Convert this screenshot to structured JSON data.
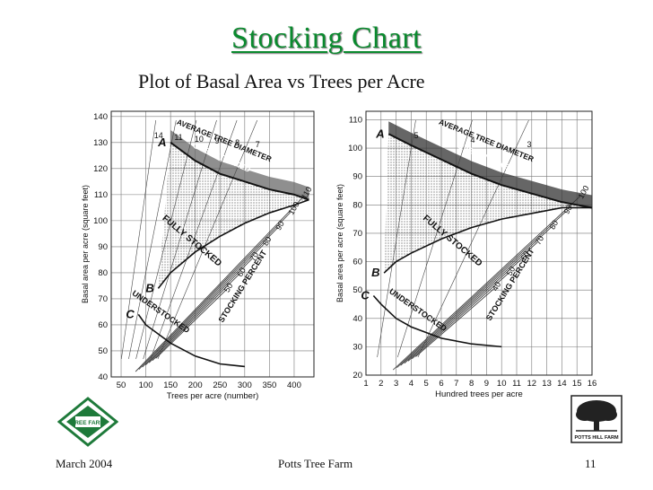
{
  "slide": {
    "title": "Stocking Chart",
    "subtitle": "Plot of Basal Area vs Trees per Acre"
  },
  "footer": {
    "date": "March 2004",
    "name": "Potts Tree Farm",
    "page": "11"
  },
  "logos": {
    "left_icon": "tree-farm-diamond-logo",
    "left_text": "TREE FARM",
    "right_icon": "oak-tree-logo",
    "right_text": "POTTS HILL FARM"
  },
  "chart_data": [
    {
      "type": "line",
      "xlabel": "Trees per acre (number)",
      "ylabel": "Basal area per acre (square feet)",
      "xlim": [
        30,
        440
      ],
      "ylim": [
        40,
        142
      ],
      "x_ticks": [
        50,
        100,
        150,
        200,
        250,
        300,
        350,
        400
      ],
      "y_ticks": [
        40,
        50,
        60,
        70,
        80,
        90,
        100,
        110,
        120,
        130,
        140
      ],
      "grid": true,
      "line_labels": [
        "A",
        "B",
        "C"
      ],
      "region_labels": [
        "AVERAGE TREE DIAMETER",
        "OVERSTOCKED",
        "FULLY STOCKED",
        "UNDERSTOCKED",
        "STOCKING PERCENT"
      ],
      "stocking_percent_labels": [
        "110",
        "100",
        "90",
        "80",
        "70",
        "60",
        "50"
      ],
      "diameter_labels": [
        "14",
        "11",
        "10",
        "9",
        "8",
        "7"
      ],
      "series": [
        {
          "name": "A",
          "x": [
            150,
            200,
            250,
            300,
            350,
            400,
            430
          ],
          "y": [
            130,
            123,
            118,
            115,
            112,
            110,
            108
          ]
        },
        {
          "name": "B",
          "x": [
            125,
            150,
            200,
            250,
            300,
            350,
            400,
            430
          ],
          "y": [
            74,
            80,
            88,
            94,
            99,
            103,
            106,
            108
          ]
        },
        {
          "name": "C",
          "x": [
            85,
            100,
            150,
            200,
            250,
            300
          ],
          "y": [
            64,
            60,
            53,
            48,
            45,
            44
          ]
        }
      ]
    },
    {
      "type": "line",
      "xlabel": "Hundred trees per acre",
      "ylabel": "Basal area per acre (square feet)",
      "xlim": [
        1,
        16
      ],
      "ylim": [
        20,
        113
      ],
      "x_ticks": [
        1,
        2,
        3,
        4,
        5,
        6,
        7,
        8,
        9,
        10,
        11,
        12,
        13,
        14,
        15,
        16
      ],
      "y_ticks": [
        20,
        30,
        40,
        50,
        60,
        70,
        80,
        90,
        100,
        110
      ],
      "grid": true,
      "line_labels": [
        "A",
        "B",
        "C"
      ],
      "region_labels": [
        "AVERAGE TREE DIAMETER",
        "OVERSTOCKED",
        "FULLY STOCKED",
        "UNDERSTOCKED",
        "STOCKING PERCENT"
      ],
      "stocking_percent_labels": [
        "100",
        "90",
        "80",
        "70",
        "60",
        "50",
        "40"
      ],
      "diameter_labels": [
        "5",
        "4",
        "3"
      ],
      "series": [
        {
          "name": "A",
          "x": [
            2.5,
            4,
            6,
            8,
            10,
            12,
            14,
            16
          ],
          "y": [
            105,
            101,
            96,
            91,
            87,
            84,
            81,
            79
          ]
        },
        {
          "name": "B",
          "x": [
            2.2,
            3,
            4,
            6,
            8,
            10,
            12,
            14,
            16
          ],
          "y": [
            56,
            60,
            63,
            68,
            72,
            75,
            77,
            79,
            79
          ]
        },
        {
          "name": "C",
          "x": [
            1.5,
            2,
            3,
            4,
            6,
            8,
            10
          ],
          "y": [
            48,
            45,
            40,
            37,
            33,
            31,
            30
          ]
        }
      ]
    }
  ]
}
